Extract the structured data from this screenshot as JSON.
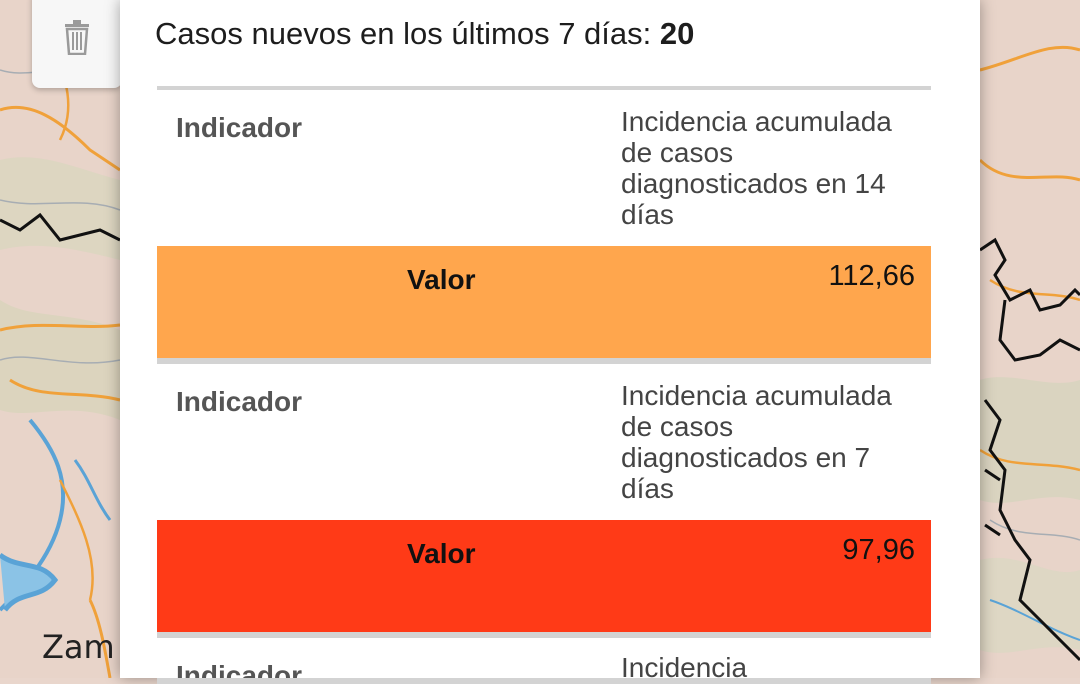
{
  "map": {
    "place_label": "Zam"
  },
  "toolbar": {
    "trash_icon": "trash-icon"
  },
  "popup": {
    "summary_label": "Casos nuevos en los últimos 7 días:",
    "summary_value": "20",
    "indicators": [
      {
        "indicator_label": "Indicador",
        "indicator_text": "Incidencia acumulada de casos diagnosticados en 14 días",
        "value_label": "Valor",
        "value": "112,66",
        "color": "#ffa64d"
      },
      {
        "indicator_label": "Indicador",
        "indicator_text": "Incidencia acumulada de casos diagnosticados en 7 días",
        "value_label": "Valor",
        "value": "97,96",
        "color": "#ff3a17"
      },
      {
        "indicator_label": "Indicador",
        "indicator_text": "Incidencia"
      }
    ]
  }
}
